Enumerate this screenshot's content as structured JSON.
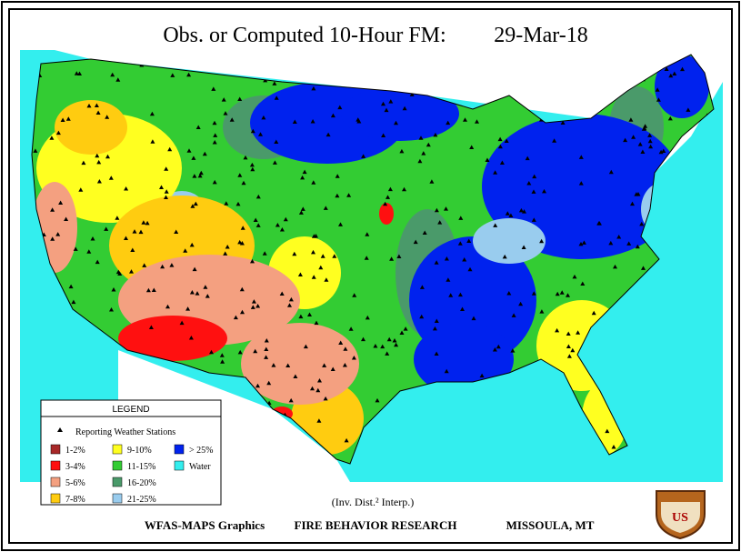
{
  "header": {
    "title": "Obs. or Computed 10-Hour FM:",
    "date": "29-Mar-18"
  },
  "legend": {
    "title": "LEGEND",
    "stations": "Reporting Weather Stations",
    "items": [
      {
        "label": "1-2%",
        "color": "#a82828"
      },
      {
        "label": "3-4%",
        "color": "#ff1010"
      },
      {
        "label": "5-6%",
        "color": "#f4a080"
      },
      {
        "label": "7-8%",
        "color": "#ffcc10"
      },
      {
        "label": "9-10%",
        "color": "#ffff20"
      },
      {
        "label": "11-15%",
        "color": "#33cc33"
      },
      {
        "label": "16-20%",
        "color": "#4a9a6a"
      },
      {
        "label": "21-25%",
        "color": "#99ccee"
      },
      {
        "label": "> 25%",
        "color": "#0022ee"
      },
      {
        "label": "Water",
        "color": "#33eeee"
      }
    ]
  },
  "footer": {
    "method": "(Inv. Dist.² Interp.)",
    "left": "WFAS-MAPS Graphics",
    "center": "FIRE BEHAVIOR RESEARCH",
    "right": "MISSOULA, MT"
  },
  "logo": "US"
}
